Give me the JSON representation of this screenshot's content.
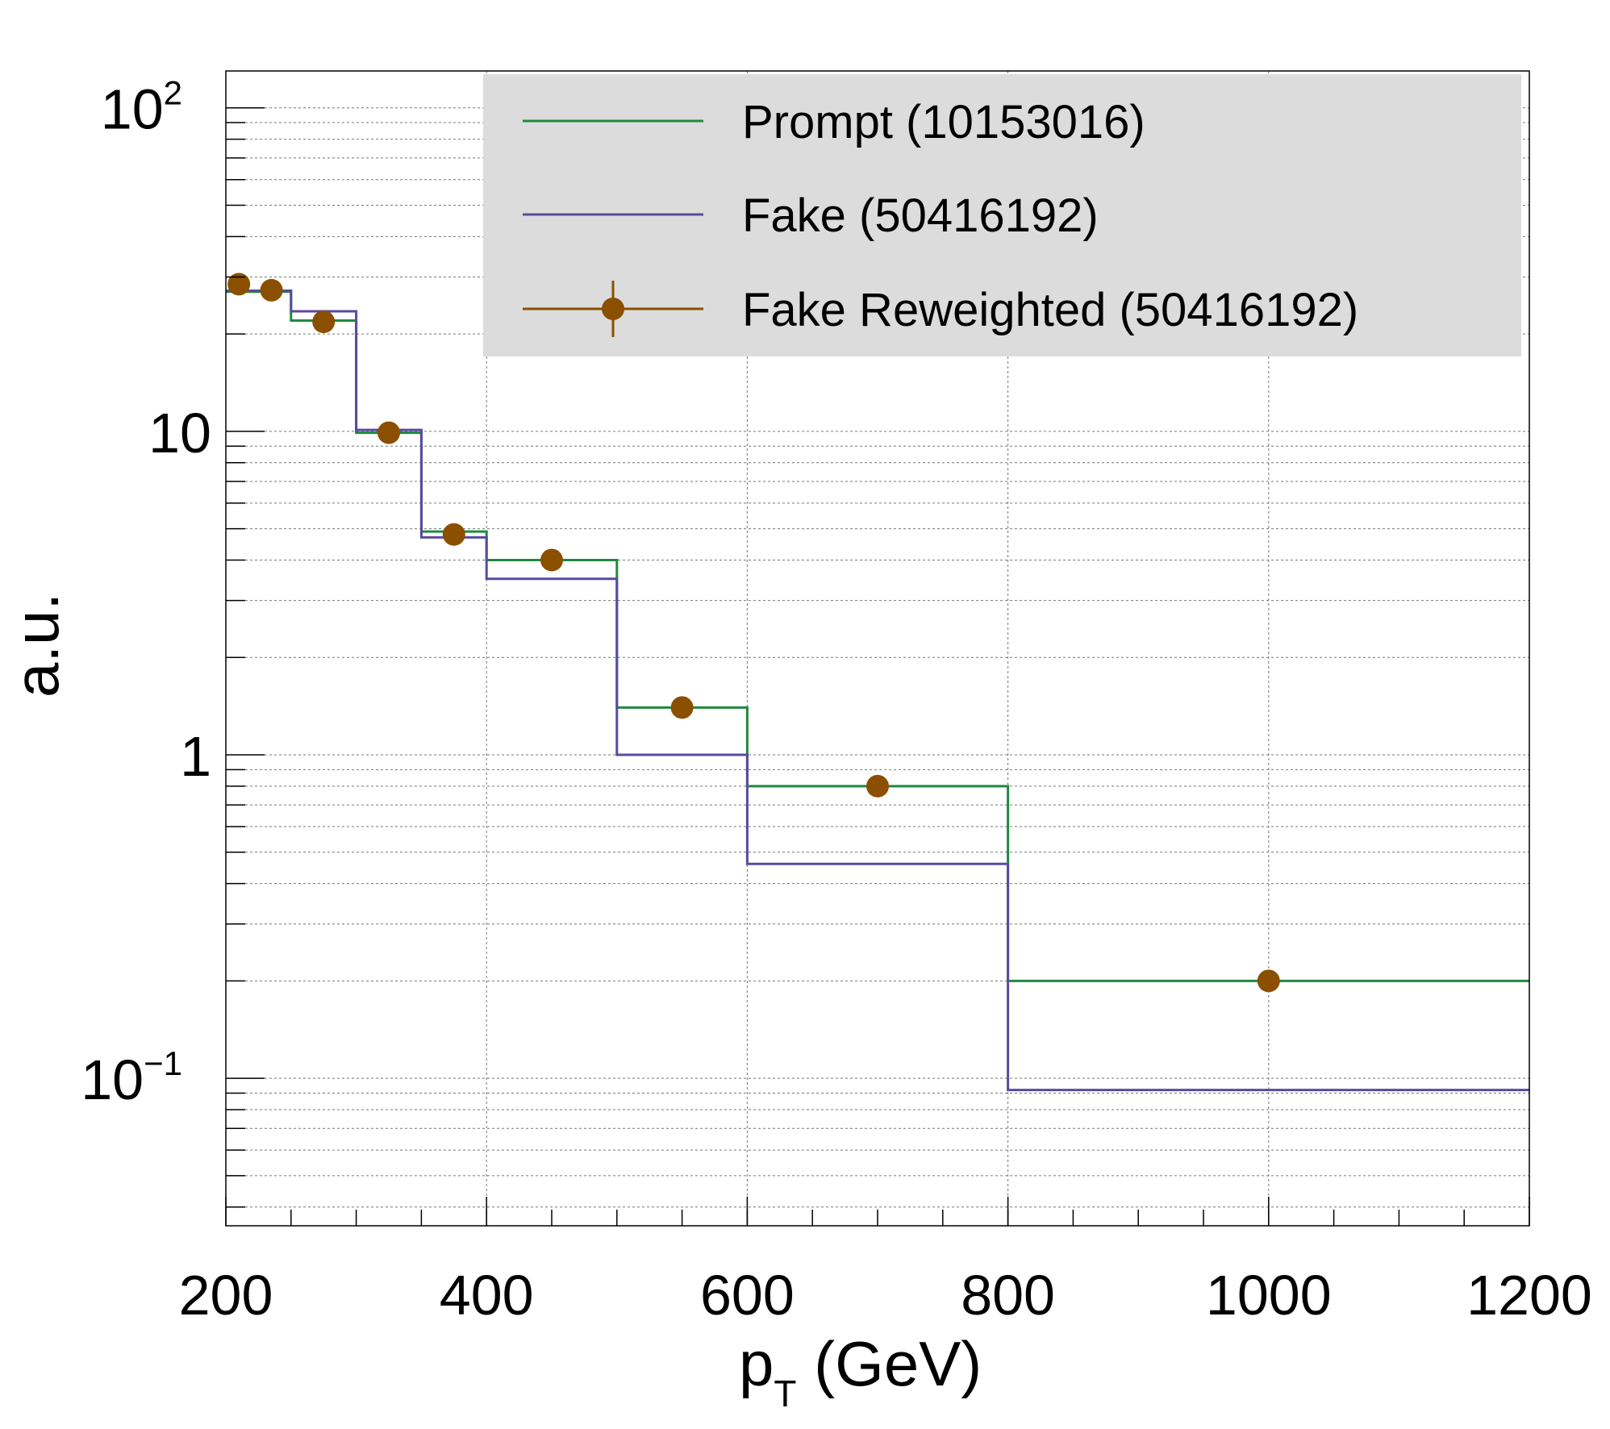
{
  "chart_data": {
    "type": "step-histogram",
    "title": "",
    "xlabel": "p",
    "xlabel_subscript": "T",
    "xlabel_unit": " (GeV)",
    "ylabel": "a.u.",
    "xlim": [
      200,
      1200
    ],
    "ylim": [
      0.035,
      130
    ],
    "yscale": "log",
    "grid": true,
    "legend_position": "top-right",
    "x_ticks": [
      "200",
      "400",
      "600",
      "800",
      "1000",
      "1200"
    ],
    "y_ticks": [
      {
        "value": 0.1,
        "base": "10",
        "exp": "−1"
      },
      {
        "value": 1,
        "base": "1",
        "exp": ""
      },
      {
        "value": 10,
        "base": "10",
        "exp": ""
      },
      {
        "value": 100,
        "base": "10",
        "exp": "2"
      }
    ],
    "bin_edges": [
      200,
      250,
      300,
      350,
      400,
      500,
      600,
      800,
      1200
    ],
    "series": [
      {
        "name": "Prompt (10153016)",
        "style": "step",
        "color": "#1e8a3e",
        "values": [
          27.0,
          22.0,
          9.9,
          4.9,
          4.0,
          1.4,
          0.8,
          0.2
        ]
      },
      {
        "name": "Fake (50416192)",
        "style": "step",
        "color": "#5b4a9e",
        "values": [
          27.2,
          23.5,
          10.1,
          4.7,
          3.5,
          1.0,
          0.46,
          0.092
        ]
      },
      {
        "name": "Fake Reweighted (50416192)",
        "style": "markers",
        "color": "#8b4f00",
        "x": [
          210,
          235,
          275,
          325,
          375,
          450,
          550,
          700,
          1000
        ],
        "values": [
          28.5,
          27.3,
          21.8,
          9.9,
          4.8,
          4.0,
          1.4,
          0.8,
          0.2
        ]
      }
    ]
  }
}
